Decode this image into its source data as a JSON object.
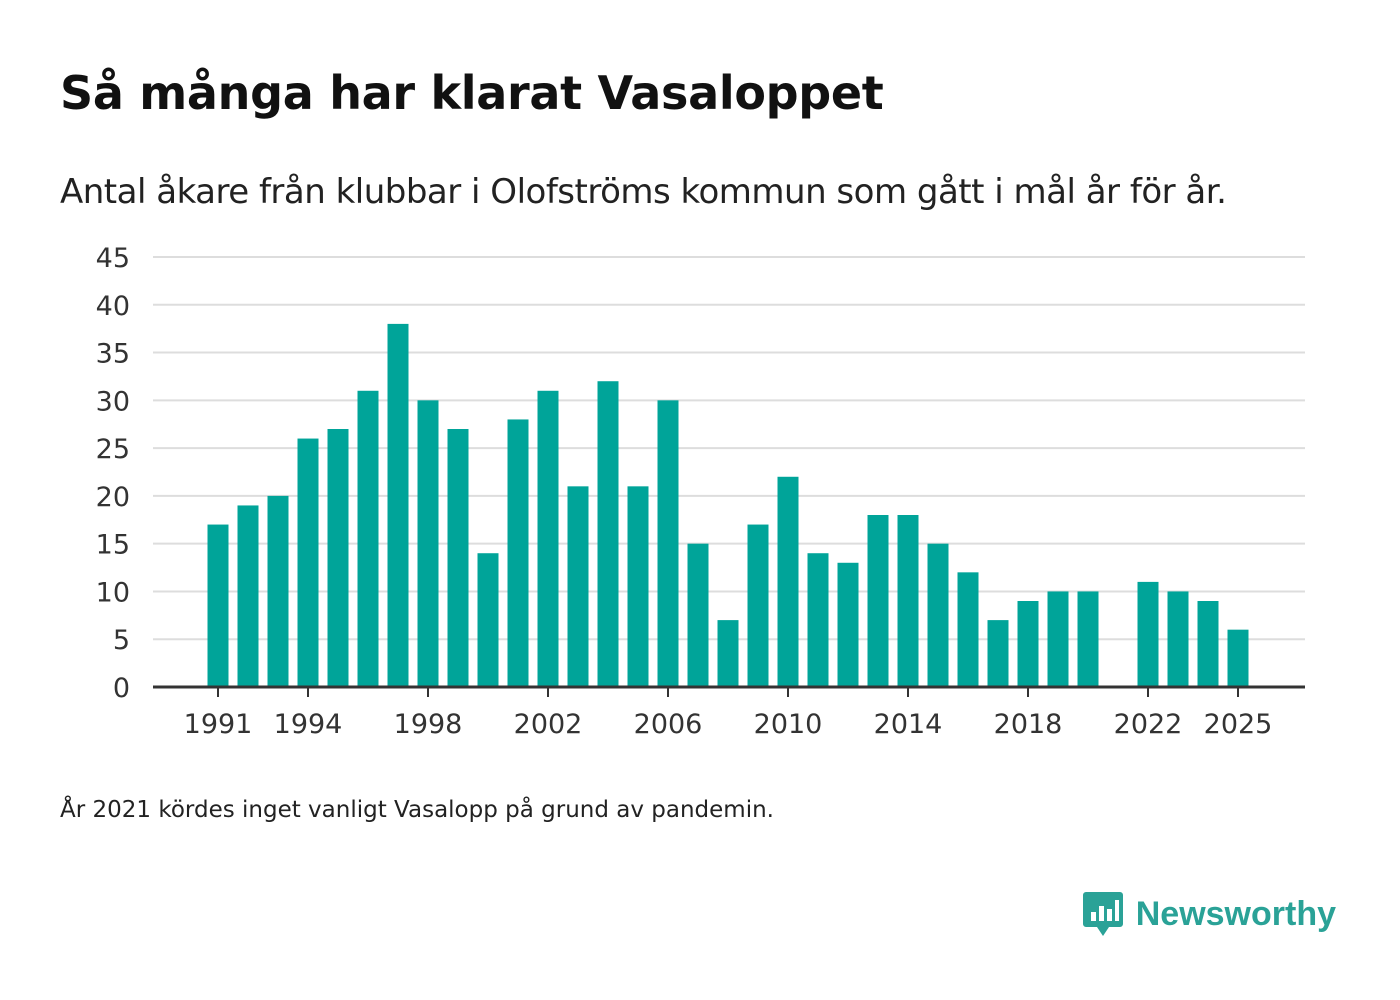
{
  "title": "Så många har klarat Vasaloppet",
  "subtitle": "Antal åkare från klubbar i Olofströms kommun som gått i mål år för år.",
  "footnote": "År 2021 kördes inget vanligt Vasalopp på grund av pandemin.",
  "brand": {
    "name": "Newsworthy",
    "icon": "newsworthy-logo-icon"
  },
  "colors": {
    "bar": "#00a499",
    "grid": "#dddddd",
    "axis": "#333333",
    "brand": "#2aa297"
  },
  "chart_data": {
    "type": "bar",
    "title": "Så många har klarat Vasaloppet",
    "xlabel": "",
    "ylabel": "",
    "ylim": [
      0,
      45
    ],
    "yticks": [
      0,
      5,
      10,
      15,
      20,
      25,
      30,
      35,
      40,
      45
    ],
    "xticks": [
      "1991",
      "1994",
      "1998",
      "2002",
      "2006",
      "2010",
      "2014",
      "2018",
      "2022",
      "2025"
    ],
    "grid": true,
    "categories": [
      "1991",
      "1992",
      "1993",
      "1994",
      "1995",
      "1996",
      "1997",
      "1998",
      "1999",
      "2000",
      "2001",
      "2002",
      "2003",
      "2004",
      "2005",
      "2006",
      "2007",
      "2008",
      "2009",
      "2010",
      "2011",
      "2012",
      "2013",
      "2014",
      "2015",
      "2016",
      "2017",
      "2018",
      "2019",
      "2020",
      "2021",
      "2022",
      "2023",
      "2024",
      "2025"
    ],
    "values": [
      17,
      19,
      20,
      26,
      27,
      31,
      38,
      30,
      27,
      14,
      28,
      31,
      21,
      32,
      21,
      30,
      15,
      7,
      17,
      22,
      14,
      13,
      18,
      18,
      15,
      12,
      7,
      9,
      10,
      10,
      null,
      11,
      10,
      9,
      6
    ]
  }
}
